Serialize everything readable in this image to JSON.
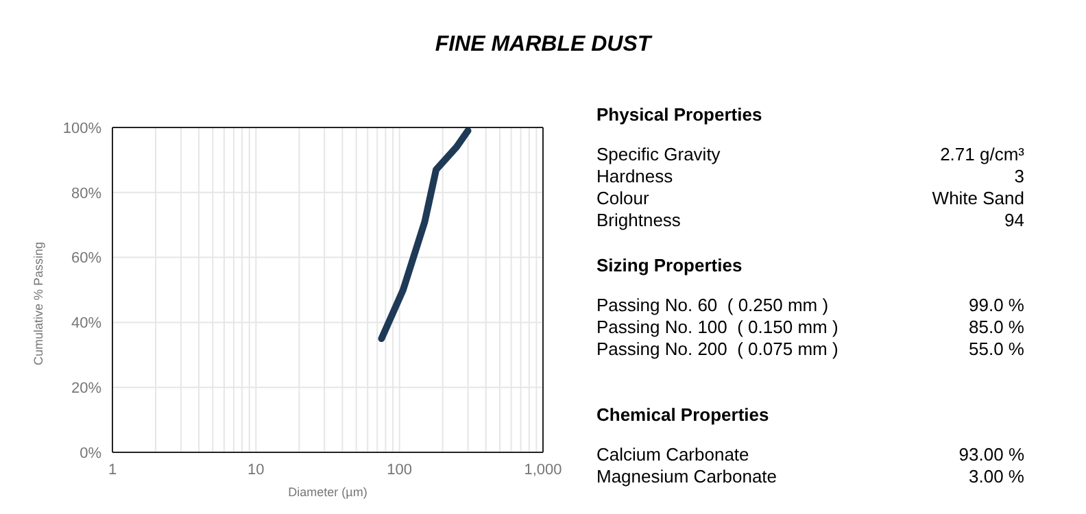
{
  "chart_data": [
    {
      "type": "line",
      "title": "FINE MARBLE DUST",
      "xlabel": "Diameter (µm)",
      "ylabel": "Cumulative % Passing",
      "log": "x",
      "grid": true,
      "marker": "none",
      "line_style": "solid",
      "legend": false,
      "xlim": [
        1,
        1000
      ],
      "xticks": [
        1,
        {
          "value": 2,
          "label": null
        },
        {
          "value": 3,
          "label": null
        },
        {
          "value": 4,
          "label": null
        },
        {
          "value": 5,
          "label": null
        },
        {
          "value": 6,
          "label": null
        },
        {
          "value": 7,
          "label": null
        },
        {
          "value": 8,
          "label": null
        },
        {
          "value": 9,
          "label": null
        },
        10,
        {
          "value": 20,
          "label": null
        },
        {
          "value": 30,
          "label": null
        },
        {
          "value": 40,
          "label": null
        },
        {
          "value": 50,
          "label": null
        },
        {
          "value": 60,
          "label": null
        },
        {
          "value": 70,
          "label": null
        },
        {
          "value": 80,
          "label": null
        },
        {
          "value": 90,
          "label": null
        },
        100,
        {
          "value": 200,
          "label": null
        },
        {
          "value": 300,
          "label": null
        },
        {
          "value": 400,
          "label": null
        },
        {
          "value": 500,
          "label": null
        },
        {
          "value": 600,
          "label": null
        },
        {
          "value": 700,
          "label": null
        },
        {
          "value": 800,
          "label": null
        },
        {
          "value": 900,
          "label": null
        },
        {
          "value": 1000,
          "label": "1,000"
        }
      ],
      "ylim": [
        0,
        100
      ],
      "yticks": [
        {
          "value": 0,
          "label": "0%"
        },
        {
          "value": 20,
          "label": "20%"
        },
        {
          "value": 40,
          "label": "40%"
        },
        {
          "value": 60,
          "label": "60%"
        },
        {
          "value": 80,
          "label": "80%"
        },
        {
          "value": 100,
          "label": "100%"
        }
      ],
      "x": [
        75,
        106,
        150,
        170,
        180,
        250,
        300
      ],
      "series": [
        {
          "color": "#1f3a56",
          "values": [
            35,
            50,
            71,
            82,
            87,
            94,
            99
          ]
        }
      ]
    },
    {
      "type": "other",
      "title": "Physical Properties",
      "annotations": [
        "Specific Gravity",
        "2.71 g/cm³",
        "Hardness",
        "3",
        "Colour",
        "White Sand",
        "Brightness",
        "94"
      ]
    },
    {
      "type": "other",
      "title": "Sizing Properties",
      "annotations": [
        "Passing No. 60  ( 0.250 mm )",
        "99.0 %",
        "Passing No. 100  ( 0.150 mm )",
        "85.0 %",
        "Passing No. 200  ( 0.075 mm )",
        "55.0 %"
      ]
    },
    {
      "type": "other",
      "title": "Chemical Properties",
      "annotations": [
        "Calcium Carbonate",
        "93.00 %",
        "Magnesium Carbonate",
        "3.00 %"
      ]
    }
  ]
}
